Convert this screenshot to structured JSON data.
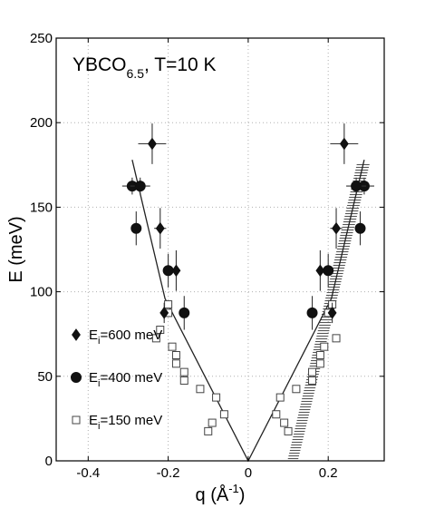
{
  "chart_data": {
    "type": "scatter",
    "title": "",
    "annotation": {
      "base": "YBCO",
      "sub": "6.5",
      "rest": ", T=10 K"
    },
    "xlabel": {
      "base": "q (Å",
      "sup": "-1",
      "close": ")"
    },
    "ylabel": "E (meV)",
    "xlim": [
      -0.48,
      0.34
    ],
    "ylim": [
      0,
      250
    ],
    "xticks": [
      -0.4,
      -0.2,
      0,
      0.2
    ],
    "xtick_labels": [
      "-0.4",
      "-0.2",
      "0",
      "0.2"
    ],
    "yticks": [
      0,
      50,
      100,
      150,
      200,
      250
    ],
    "ytick_labels": [
      "0",
      "50",
      "100",
      "150",
      "200",
      "250"
    ],
    "grid": true,
    "legend_position": "left",
    "series": [
      {
        "name": "E_i=600 meV",
        "legend": {
          "pre": "E",
          "sub": "i",
          "post": "=600 meV"
        },
        "marker": "diamond",
        "points": [
          {
            "x": -0.24,
            "y": 187.5,
            "xerr": 0.035,
            "yerr": 12
          },
          {
            "x": -0.22,
            "y": 137.5,
            "xerr": 0.015,
            "yerr": 12
          },
          {
            "x": -0.18,
            "y": 112.5,
            "xerr": 0.01,
            "yerr": 12
          },
          {
            "x": -0.21,
            "y": 87.5,
            "xerr": 0.008,
            "yerr": 6
          },
          {
            "x": 0.24,
            "y": 187.5,
            "xerr": 0.035,
            "yerr": 12
          },
          {
            "x": 0.22,
            "y": 137.5,
            "xerr": 0.015,
            "yerr": 12
          },
          {
            "x": 0.18,
            "y": 112.5,
            "xerr": 0.01,
            "yerr": 12
          },
          {
            "x": 0.21,
            "y": 87.5,
            "xerr": 0.008,
            "yerr": 6
          }
        ]
      },
      {
        "name": "E_i=400 meV",
        "legend": {
          "pre": "E",
          "sub": "i",
          "post": "=400 meV"
        },
        "marker": "circle",
        "points": [
          {
            "x": -0.29,
            "y": 162.5,
            "xerr": 0.025,
            "yerr": 5
          },
          {
            "x": -0.27,
            "y": 162.5,
            "xerr": 0.025,
            "yerr": 5
          },
          {
            "x": -0.28,
            "y": 137.5,
            "xerr": 0.012,
            "yerr": 10
          },
          {
            "x": -0.2,
            "y": 112.5,
            "xerr": 0.012,
            "yerr": 10
          },
          {
            "x": -0.16,
            "y": 87.5,
            "xerr": 0.01,
            "yerr": 10
          },
          {
            "x": 0.29,
            "y": 162.5,
            "xerr": 0.025,
            "yerr": 5
          },
          {
            "x": 0.27,
            "y": 162.5,
            "xerr": 0.025,
            "yerr": 5
          },
          {
            "x": 0.28,
            "y": 137.5,
            "xerr": 0.012,
            "yerr": 10
          },
          {
            "x": 0.2,
            "y": 112.5,
            "xerr": 0.012,
            "yerr": 10
          },
          {
            "x": 0.16,
            "y": 87.5,
            "xerr": 0.01,
            "yerr": 10
          }
        ]
      },
      {
        "name": "E_i=150 meV",
        "legend": {
          "pre": "E",
          "sub": "i",
          "post": "=150 meV"
        },
        "marker": "square-open",
        "points": [
          {
            "x": -0.2,
            "y": 92.5
          },
          {
            "x": -0.2,
            "y": 87.5
          },
          {
            "x": -0.22,
            "y": 77.5
          },
          {
            "x": -0.23,
            "y": 72.5
          },
          {
            "x": -0.19,
            "y": 67.5
          },
          {
            "x": -0.18,
            "y": 62.5
          },
          {
            "x": -0.18,
            "y": 57.5
          },
          {
            "x": -0.16,
            "y": 52.5
          },
          {
            "x": -0.16,
            "y": 47.5
          },
          {
            "x": -0.12,
            "y": 42.5
          },
          {
            "x": -0.08,
            "y": 37.5
          },
          {
            "x": -0.06,
            "y": 27.5
          },
          {
            "x": -0.09,
            "y": 22.5
          },
          {
            "x": -0.1,
            "y": 17.5
          },
          {
            "x": 0.21,
            "y": 92.5
          },
          {
            "x": 0.2,
            "y": 87.5
          },
          {
            "x": 0.22,
            "y": 72.5
          },
          {
            "x": 0.19,
            "y": 67.5
          },
          {
            "x": 0.18,
            "y": 62.5
          },
          {
            "x": 0.18,
            "y": 57.5
          },
          {
            "x": 0.16,
            "y": 52.5
          },
          {
            "x": 0.16,
            "y": 47.5
          },
          {
            "x": 0.12,
            "y": 42.5
          },
          {
            "x": 0.08,
            "y": 37.5
          },
          {
            "x": 0.07,
            "y": 27.5
          },
          {
            "x": 0.09,
            "y": 22.5
          },
          {
            "x": 0.1,
            "y": 17.5
          }
        ]
      }
    ],
    "model_lines": [
      {
        "name": "",
        "points": [
          [
            -0.29,
            178
          ],
          [
            -0.208,
            96
          ],
          [
            0,
            0
          ],
          [
            0.208,
            96
          ],
          [
            0.29,
            178
          ]
        ]
      }
    ],
    "shaded_band": {
      "name": "",
      "lower": [
        [
          0.098,
          0
        ],
        [
          0.272,
          176
        ]
      ],
      "upper": [
        [
          0.124,
          0
        ],
        [
          0.304,
          176
        ]
      ]
    }
  }
}
